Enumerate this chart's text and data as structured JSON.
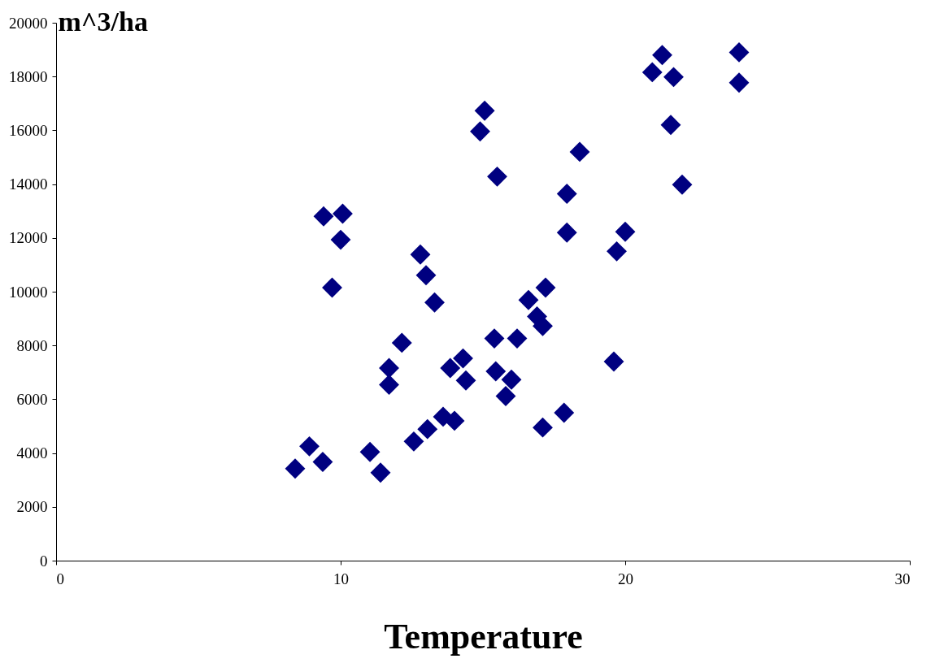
{
  "chart_data": {
    "type": "scatter",
    "xlabel": "Temperature",
    "ylabel": "m^3/ha",
    "marker": "diamond",
    "grid": false,
    "legend": false,
    "xlim": [
      0,
      30
    ],
    "xticks": [
      0,
      10,
      20,
      30
    ],
    "ylim": [
      0,
      20000
    ],
    "yticks": [
      0,
      2000,
      4000,
      6000,
      8000,
      10000,
      12000,
      14000,
      16000,
      18000,
      20000
    ],
    "series": [
      {
        "color": "#000080",
        "x": [
          24.0,
          24.0,
          21.3,
          20.95,
          21.7,
          21.6,
          22.0,
          18.4,
          17.95,
          17.95,
          20.0,
          19.7,
          19.6,
          15.06,
          14.9,
          15.5,
          9.4,
          10.07,
          10.0,
          9.7,
          12.8,
          13.0,
          13.3,
          12.15,
          11.7,
          11.7,
          8.9,
          8.4,
          9.37,
          11.03,
          11.4,
          12.57,
          13.05,
          13.6,
          14.0,
          13.85,
          14.3,
          14.4,
          15.45,
          16.0,
          15.8,
          15.4,
          16.2,
          17.2,
          16.6,
          16.9,
          17.1,
          17.1,
          17.85
        ],
        "values": [
          18900,
          17770,
          18800,
          18160,
          17980,
          16200,
          13980,
          15200,
          13640,
          12200,
          12230,
          11500,
          7400,
          16730,
          15960,
          14280,
          12800,
          12900,
          11930,
          10150,
          11380,
          10610,
          9600,
          8100,
          7160,
          6540,
          4250,
          3420,
          3670,
          4040,
          3270,
          4430,
          4890,
          5350,
          5200,
          7160,
          7520,
          6700,
          7040,
          6730,
          6120,
          8260,
          8260,
          10150,
          9690,
          9080,
          8720,
          4950,
          5500
        ]
      }
    ]
  }
}
